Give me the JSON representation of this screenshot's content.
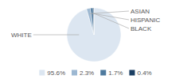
{
  "chart_data": {
    "type": "pie",
    "categories": [
      "WHITE",
      "ASIAN",
      "HISPANIC",
      "BLACK"
    ],
    "values": [
      95.6,
      2.3,
      1.7,
      0.4
    ],
    "value_labels": [
      "95.6%",
      "2.3%",
      "1.7%",
      "0.4%"
    ],
    "colors": [
      "#dce6f1",
      "#9db8d2",
      "#4f7a9e",
      "#1b3f62"
    ],
    "legend": "bottom"
  }
}
